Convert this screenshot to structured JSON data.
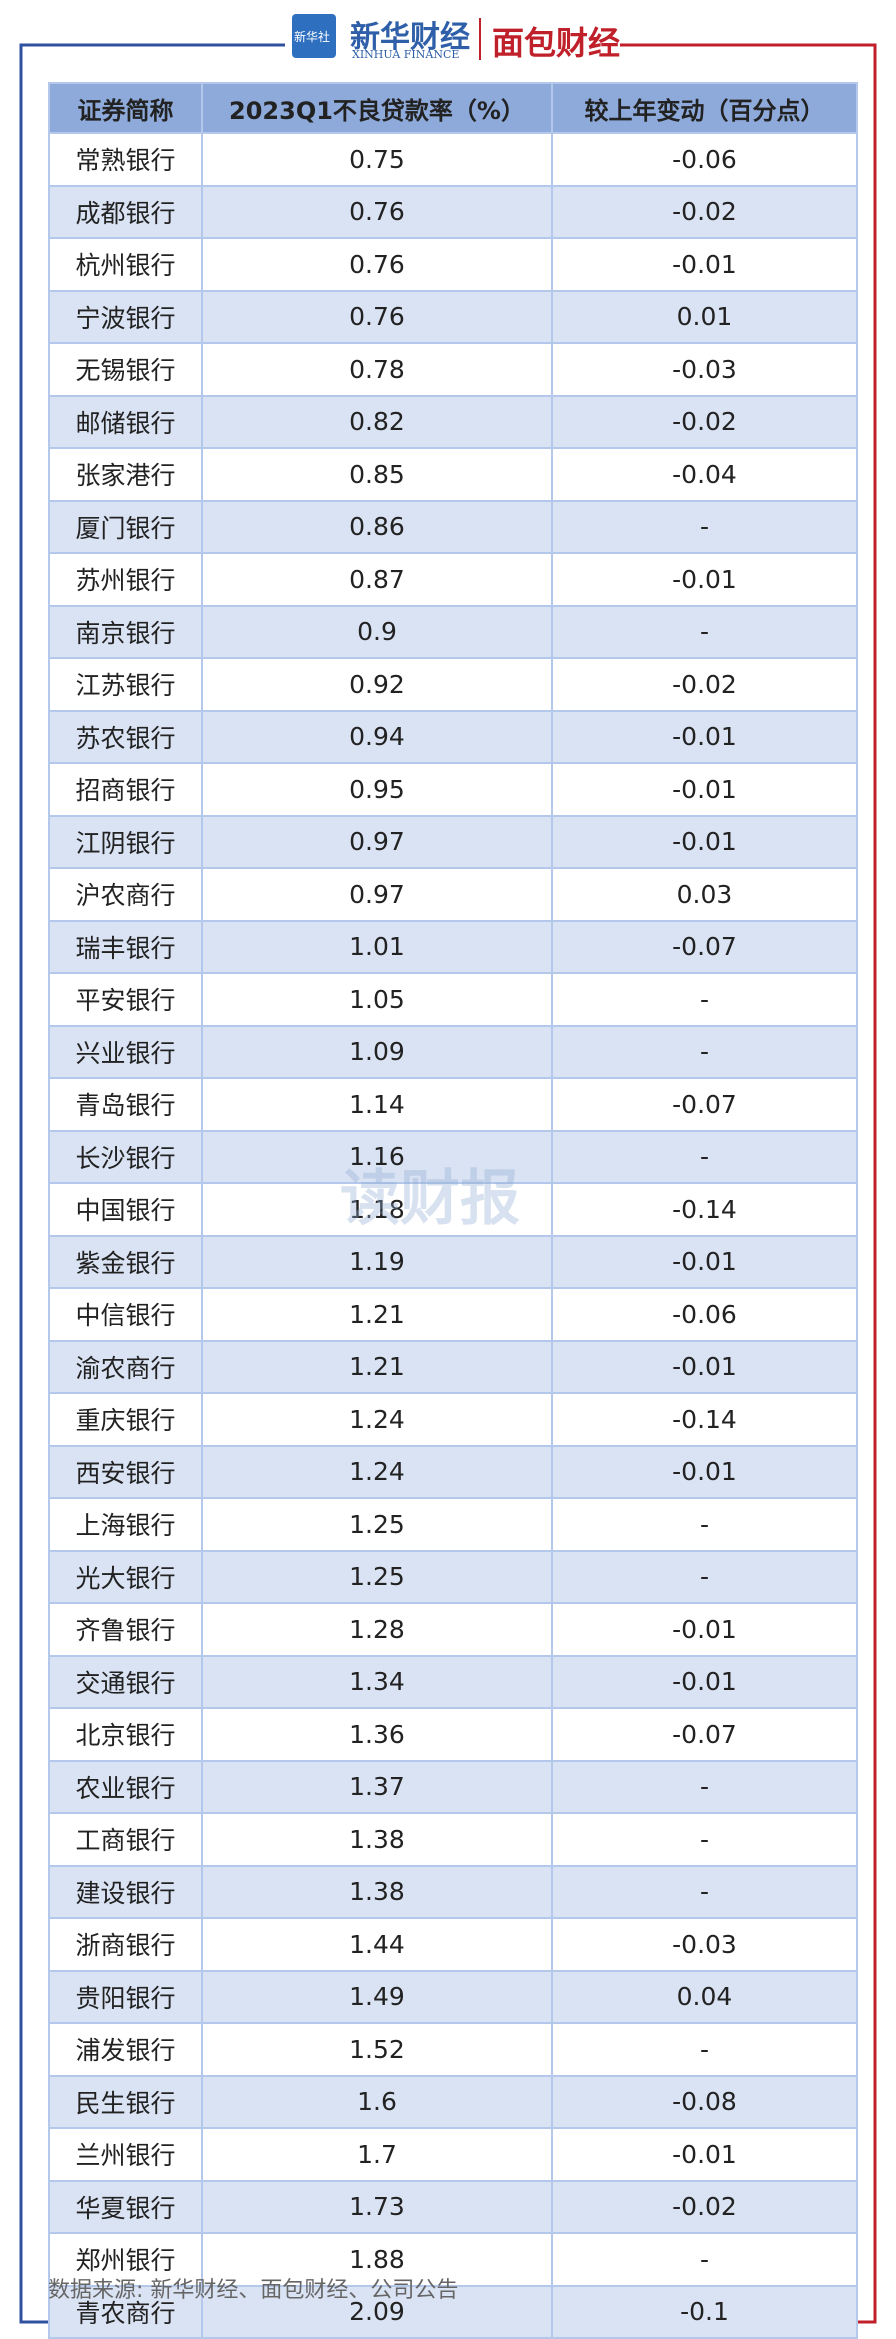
{
  "header": {
    "logo_badge": "新华社",
    "brand1": "新华财经",
    "brand1_en": "XINHUA FINANCE",
    "brand2": "面包财经"
  },
  "watermark": "读财报",
  "table": {
    "columns": [
      "证券简称",
      "2023Q1不良贷款率（%）",
      "较上年变动（百分点）"
    ],
    "rows": [
      [
        "常熟银行",
        "0.75",
        "-0.06"
      ],
      [
        "成都银行",
        "0.76",
        "-0.02"
      ],
      [
        "杭州银行",
        "0.76",
        "-0.01"
      ],
      [
        "宁波银行",
        "0.76",
        "0.01"
      ],
      [
        "无锡银行",
        "0.78",
        "-0.03"
      ],
      [
        "邮储银行",
        "0.82",
        "-0.02"
      ],
      [
        "张家港行",
        "0.85",
        "-0.04"
      ],
      [
        "厦门银行",
        "0.86",
        "-"
      ],
      [
        "苏州银行",
        "0.87",
        "-0.01"
      ],
      [
        "南京银行",
        "0.9",
        "-"
      ],
      [
        "江苏银行",
        "0.92",
        "-0.02"
      ],
      [
        "苏农银行",
        "0.94",
        "-0.01"
      ],
      [
        "招商银行",
        "0.95",
        "-0.01"
      ],
      [
        "江阴银行",
        "0.97",
        "-0.01"
      ],
      [
        "沪农商行",
        "0.97",
        "0.03"
      ],
      [
        "瑞丰银行",
        "1.01",
        "-0.07"
      ],
      [
        "平安银行",
        "1.05",
        "-"
      ],
      [
        "兴业银行",
        "1.09",
        "-"
      ],
      [
        "青岛银行",
        "1.14",
        "-0.07"
      ],
      [
        "长沙银行",
        "1.16",
        "-"
      ],
      [
        "中国银行",
        "1.18",
        "-0.14"
      ],
      [
        "紫金银行",
        "1.19",
        "-0.01"
      ],
      [
        "中信银行",
        "1.21",
        "-0.06"
      ],
      [
        "渝农商行",
        "1.21",
        "-0.01"
      ],
      [
        "重庆银行",
        "1.24",
        "-0.14"
      ],
      [
        "西安银行",
        "1.24",
        "-0.01"
      ],
      [
        "上海银行",
        "1.25",
        "-"
      ],
      [
        "光大银行",
        "1.25",
        "-"
      ],
      [
        "齐鲁银行",
        "1.28",
        "-0.01"
      ],
      [
        "交通银行",
        "1.34",
        "-0.01"
      ],
      [
        "北京银行",
        "1.36",
        "-0.07"
      ],
      [
        "农业银行",
        "1.37",
        "-"
      ],
      [
        "工商银行",
        "1.38",
        "-"
      ],
      [
        "建设银行",
        "1.38",
        "-"
      ],
      [
        "浙商银行",
        "1.44",
        "-0.03"
      ],
      [
        "贵阳银行",
        "1.49",
        "0.04"
      ],
      [
        "浦发银行",
        "1.52",
        "-"
      ],
      [
        "民生银行",
        "1.6",
        "-0.08"
      ],
      [
        "兰州银行",
        "1.7",
        "-0.01"
      ],
      [
        "华夏银行",
        "1.73",
        "-0.02"
      ],
      [
        "郑州银行",
        "1.88",
        "-"
      ],
      [
        "青农商行",
        "2.09",
        "-0.1"
      ]
    ]
  },
  "footer": "数据来源: 新华财经、面包财经、公司公告"
}
